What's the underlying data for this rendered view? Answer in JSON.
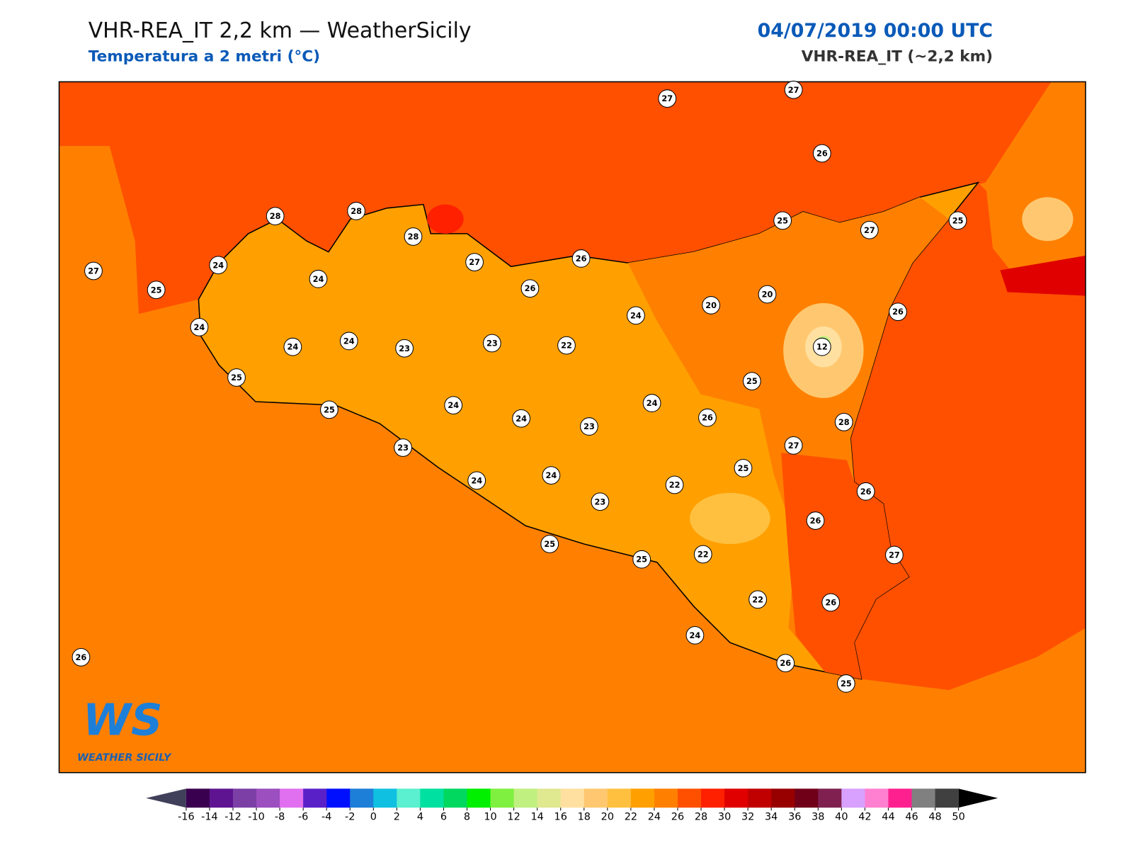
{
  "header": {
    "title": "VHR-REA_IT 2,2 km — WeatherSicily",
    "subtitle": "Temperatura a 2 metri (°C)",
    "date": "04/07/2019 00:00 UTC",
    "model": "VHR-REA_IT (~2,2 km)"
  },
  "map": {
    "stations": [
      27,
      27,
      26,
      28,
      28,
      28,
      25,
      27,
      25,
      27,
      25,
      24,
      24,
      27,
      26,
      26,
      20,
      20,
      24,
      26,
      24,
      24,
      24,
      23,
      23,
      22,
      12,
      25,
      25,
      25,
      24,
      24,
      26,
      24,
      23,
      28,
      23,
      27,
      25,
      24,
      24,
      22,
      26,
      23,
      26,
      25,
      25,
      22,
      27,
      22,
      26,
      24,
      26,
      25,
      26
    ]
  },
  "colorbar": {
    "ticks": [
      -16,
      -14,
      -12,
      -10,
      -8,
      -6,
      -4,
      -2,
      0,
      2,
      4,
      6,
      8,
      10,
      12,
      14,
      16,
      18,
      20,
      22,
      24,
      26,
      28,
      30,
      32,
      34,
      36,
      38,
      40,
      42,
      44,
      46,
      48,
      50
    ],
    "colors": [
      "#3a0050",
      "#5e1490",
      "#7b3fa6",
      "#9c4fbf",
      "#e070f0",
      "#5a20c8",
      "#0010ff",
      "#1e7fd8",
      "#10c0e0",
      "#5af0d0",
      "#00e0a0",
      "#00d860",
      "#00f000",
      "#80f040",
      "#c0f080",
      "#e0e890",
      "#ffe0a0",
      "#ffc870",
      "#ffc040",
      "#ffa000",
      "#ff8000",
      "#ff5000",
      "#ff2000",
      "#e00000",
      "#c00000",
      "#980000",
      "#700018",
      "#802050",
      "#d8a0ff",
      "#ff80d0",
      "#ff2090",
      "#808080",
      "#404040"
    ],
    "under_color": "#40405a",
    "over_color": "#000000"
  },
  "logo": {
    "text": "WS",
    "caption": "WEATHER SICILY"
  }
}
